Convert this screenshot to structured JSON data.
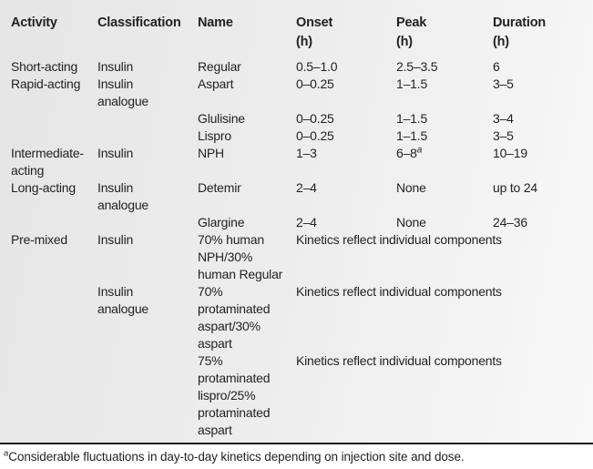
{
  "colors": {
    "background_left": "#e5e5e5",
    "background_right": "#f8f8f8",
    "rule": "#1a1a1a",
    "text": "#231f20"
  },
  "table": {
    "header": {
      "activity": "Activity",
      "classification": "Classification",
      "name": "Name",
      "onset": "Onset\n(h)",
      "peak": "Peak\n(h)",
      "duration": "Duration\n(h)"
    },
    "rows": [
      {
        "activity": "Short-acting",
        "classification": "Insulin",
        "name": "Regular",
        "onset": "0.5–1.0",
        "peak": "2.5–3.5",
        "duration": "6"
      },
      {
        "activity": "Rapid-acting",
        "classification": "Insulin\nanalogue",
        "name": "Aspart",
        "onset": "0–0.25",
        "peak": "1–1.5",
        "duration": "3–5"
      },
      {
        "activity": "",
        "classification": "",
        "name": "Glulisine",
        "onset": "0–0.25",
        "peak": "1–1.5",
        "duration": "3–4"
      },
      {
        "activity": "",
        "classification": "",
        "name": "Lispro",
        "onset": "0–0.25",
        "peak": "1–1.5",
        "duration": "3–5"
      },
      {
        "activity": "Intermediate-\nacting",
        "classification": "Insulin",
        "name": "NPH",
        "onset": "1–3",
        "peak": "6–8",
        "peak_sup": "a",
        "duration": "10–19"
      },
      {
        "activity": "Long-acting",
        "classification": "Insulin\nanalogue",
        "name": "Detemir",
        "onset": "2–4",
        "peak": "None",
        "duration": "up to 24"
      },
      {
        "activity": "",
        "classification": "",
        "name": "Glargine",
        "onset": "2–4",
        "peak": "None",
        "duration": "24–36"
      },
      {
        "activity": "Pre-mixed",
        "classification": "Insulin",
        "name": "70% human\nNPH/30%\nhuman Regular",
        "kinetics": "Kinetics reflect individual components"
      },
      {
        "activity": "",
        "classification": "Insulin\nanalogue",
        "name": "70%\nprotaminated\naspart/30%\naspart",
        "kinetics": "Kinetics reflect individual components"
      },
      {
        "activity": "",
        "classification": "",
        "name": "75%\nprotaminated\nlispro/25%\nprotaminated\naspart",
        "kinetics": "Kinetics reflect individual components"
      }
    ]
  },
  "footnote": {
    "marker": "a",
    "text": "Considerable fluctuations in day-to-day kinetics depending on injection site and dose."
  }
}
